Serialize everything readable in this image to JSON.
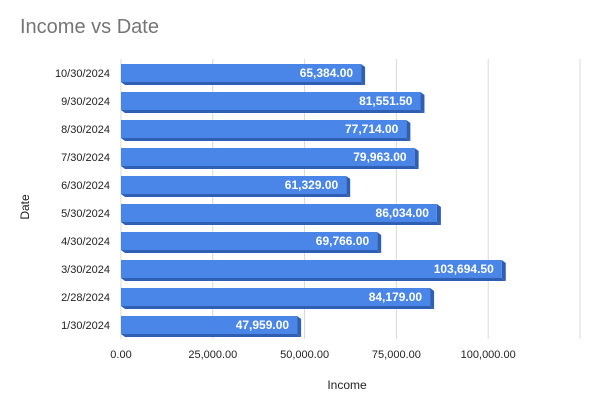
{
  "chart_data": {
    "type": "bar",
    "orientation": "horizontal",
    "title": "Income vs Date",
    "xlabel": "Income",
    "ylabel": "Date",
    "xlim": [
      0,
      125000
    ],
    "x_ticks": [
      0,
      25000,
      50000,
      75000,
      100000
    ],
    "x_tick_labels": [
      "0.00",
      "25,000.00",
      "50,000.00",
      "75,000.00",
      "100,000.00"
    ],
    "grid": true,
    "legend": "none",
    "bar_color": "#4a86e8",
    "categories": [
      "10/30/2024",
      "9/30/2024",
      "8/30/2024",
      "7/30/2024",
      "6/30/2024",
      "5/30/2024",
      "4/30/2024",
      "3/30/2024",
      "2/28/2024",
      "1/30/2024"
    ],
    "values": [
      65384.0,
      81551.5,
      77714.0,
      79963.0,
      61329.0,
      86034.0,
      69766.0,
      103694.5,
      84179.0,
      47959.0
    ],
    "value_labels": [
      "65,384.00",
      "81,551.50",
      "77,714.00",
      "79,963.00",
      "61,329.00",
      "86,034.00",
      "69,766.00",
      "103,694.50",
      "84,179.00",
      "47,959.00"
    ]
  }
}
